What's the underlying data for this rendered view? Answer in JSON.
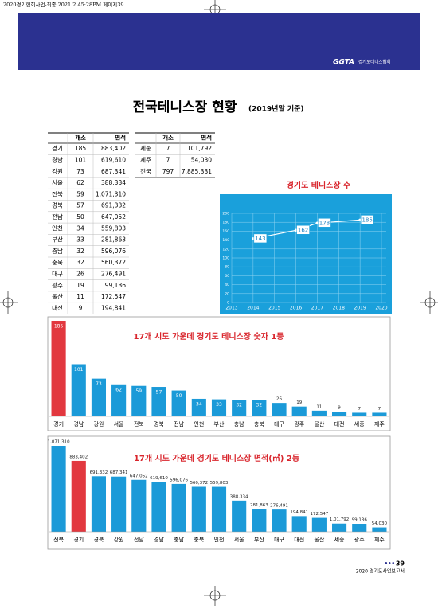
{
  "print_slug": "2020경기협회사업-최종  2021.2.45:28PM  페이지39",
  "header": {
    "logo": "GGTA",
    "logo_text": "경기도테니스협회"
  },
  "title": "전국테니스장 현황",
  "subtitle": "(2019년말 기준)",
  "table1": {
    "columns": [
      "개소",
      "면적"
    ],
    "rows": [
      [
        "경기",
        "185",
        "883,402"
      ],
      [
        "경남",
        "101",
        "619,610"
      ],
      [
        "강원",
        "73",
        "687,341"
      ],
      [
        "서울",
        "62",
        "388,334"
      ],
      [
        "전북",
        "59",
        "1,071,310"
      ],
      [
        "경북",
        "57",
        "691,332"
      ],
      [
        "전남",
        "50",
        "647,052"
      ],
      [
        "인천",
        "34",
        "559,803"
      ],
      [
        "부산",
        "33",
        "281,863"
      ],
      [
        "충남",
        "32",
        "596,076"
      ],
      [
        "충북",
        "32",
        "560,372"
      ],
      [
        "대구",
        "26",
        "276,491"
      ],
      [
        "광주",
        "19",
        "99,136"
      ],
      [
        "울산",
        "11",
        "172,547"
      ],
      [
        "대전",
        "9",
        "194,841"
      ]
    ]
  },
  "table2": {
    "columns": [
      "개소",
      "면적"
    ],
    "rows": [
      [
        "세종",
        "7",
        "101,792"
      ],
      [
        "제주",
        "7",
        "54,030"
      ],
      [
        "전국",
        "797",
        "7,885,331"
      ]
    ]
  },
  "chart_data": [
    {
      "type": "line",
      "title": "경기도 테니스장 수",
      "x": [
        2014,
        2016,
        2017,
        2019
      ],
      "series": [
        {
          "color": "#ffffff",
          "values": [
            143,
            162,
            178,
            185
          ]
        }
      ],
      "xlim": [
        2013,
        2020
      ],
      "xticks": [
        2013,
        2014,
        2015,
        2016,
        2017,
        2018,
        2019,
        2020
      ],
      "ylim": [
        0,
        200
      ],
      "yticks": [
        0,
        20,
        40,
        60,
        80,
        100,
        120,
        140,
        160,
        180,
        200
      ],
      "grid": true,
      "background": "#1aa0db"
    },
    {
      "type": "bar",
      "title": "17개 시도 가운데 경기도 테니스장 숫자 1등",
      "categories": [
        "경기",
        "경남",
        "강원",
        "서울",
        "전북",
        "경북",
        "전남",
        "인천",
        "부산",
        "충남",
        "충북",
        "대구",
        "광주",
        "울산",
        "대전",
        "세종",
        "제주"
      ],
      "values": [
        185,
        101,
        73,
        62,
        59,
        57,
        50,
        34,
        33,
        32,
        32,
        26,
        19,
        11,
        9,
        7,
        7
      ],
      "colors": [
        "#e2383f",
        "#1b9ad8",
        "#1b9ad8",
        "#1b9ad8",
        "#1b9ad8",
        "#1b9ad8",
        "#1b9ad8",
        "#1b9ad8",
        "#1b9ad8",
        "#1b9ad8",
        "#1b9ad8",
        "#1b9ad8",
        "#1b9ad8",
        "#1b9ad8",
        "#1b9ad8",
        "#1b9ad8",
        "#1b9ad8"
      ]
    },
    {
      "type": "bar",
      "title": "17개 시도 가운데 경기도 테니스장 면적(㎡) 2등",
      "categories": [
        "전북",
        "경기",
        "경북",
        "강원",
        "전남",
        "경남",
        "충남",
        "충북",
        "인천",
        "서울",
        "부산",
        "대구",
        "대전",
        "울산",
        "세종",
        "광주",
        "제주"
      ],
      "values": [
        1071310,
        883402,
        691332,
        687341,
        647052,
        619610,
        596076,
        560372,
        559803,
        388334,
        281863,
        276491,
        194841,
        172547,
        101792,
        99136,
        54030
      ],
      "value_labels": [
        "1,071,310",
        "883,402",
        "691,332",
        "687,341",
        "647,052",
        "619,610",
        "596,076",
        "560,372",
        "559,803",
        "388,334",
        "281,863",
        "276,491",
        "194,841",
        "172,547",
        "1,01,792",
        "99,136",
        "54,030"
      ],
      "colors": [
        "#1b9ad8",
        "#e2383f",
        "#1b9ad8",
        "#1b9ad8",
        "#1b9ad8",
        "#1b9ad8",
        "#1b9ad8",
        "#1b9ad8",
        "#1b9ad8",
        "#1b9ad8",
        "#1b9ad8",
        "#1b9ad8",
        "#1b9ad8",
        "#1b9ad8",
        "#1b9ad8",
        "#1b9ad8",
        "#1b9ad8"
      ]
    }
  ],
  "footer": {
    "page": "39",
    "report": "2020 경기도사업보고서"
  }
}
